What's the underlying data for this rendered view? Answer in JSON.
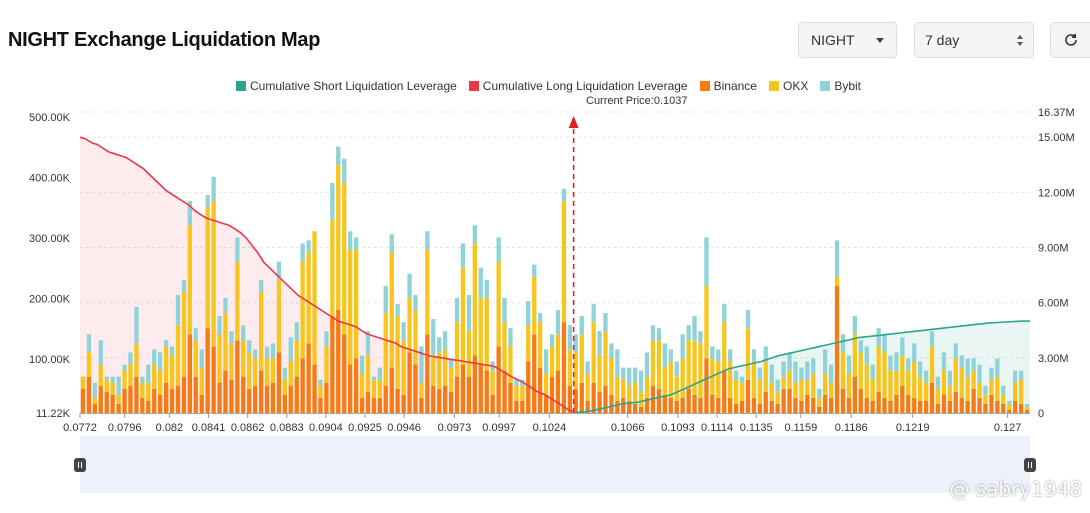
{
  "header": {
    "title": "NIGHT Exchange Liquidation Map"
  },
  "controls": {
    "coin_value": "NIGHT",
    "range_value": "7 day",
    "refresh_icon": "refresh-icon"
  },
  "watermark": "@ sabry1948",
  "colors": {
    "short": "#2aa58b",
    "long": "#e8394b",
    "binance": "#f47b16",
    "okx": "#f7c51e",
    "bybit": "#8fd3d9",
    "current_price_line": "#e02020"
  },
  "chart_data": {
    "type": "bar",
    "title": "",
    "current_price_label": "Current Price:0.1037",
    "current_price": 0.1037,
    "legend": [
      {
        "label": "Cumulative Short Liquidation Leverage",
        "color": "#2aa58b"
      },
      {
        "label": "Cumulative Long Liquidation Leverage",
        "color": "#e8394b"
      },
      {
        "label": "Binance",
        "color": "#f47b16"
      },
      {
        "label": "OKX",
        "color": "#f7c51e"
      },
      {
        "label": "Bybit",
        "color": "#8fd3d9"
      }
    ],
    "legend_position": "top-center",
    "y_left": {
      "ticks": [
        "500.00K",
        "400.00K",
        "300.00K",
        "200.00K",
        "100.00K",
        "11.22K"
      ],
      "values": [
        500000,
        400000,
        300000,
        200000,
        100000,
        11220
      ],
      "range": [
        11220,
        500000
      ]
    },
    "y_right": {
      "ticks": [
        "16.37M",
        "15.00M",
        "12.00M",
        "9.00M",
        "6.00M",
        "3.00M",
        "0"
      ],
      "values": [
        16370000,
        15000000,
        12000000,
        9000000,
        6000000,
        3000000,
        0
      ],
      "range": [
        0,
        16370000
      ]
    },
    "x_ticks": [
      "0.0772",
      "0.0796",
      "0.082",
      "0.0841",
      "0.0862",
      "0.0883",
      "0.0904",
      "0.0925",
      "0.0946",
      "0.0973",
      "0.0997",
      "0.1024",
      "0.1066",
      "0.1093",
      "0.1114",
      "0.1135",
      "0.1159",
      "0.1186",
      "0.1219",
      "0.127"
    ],
    "x_range": [
      0.0772,
      0.1282
    ],
    "bars_binance": [
      40,
      60,
      15,
      45,
      35,
      30,
      15,
      40,
      45,
      60,
      25,
      20,
      40,
      30,
      50,
      40,
      45,
      60,
      130,
      60,
      30,
      140,
      110,
      50,
      70,
      55,
      120,
      60,
      40,
      45,
      70,
      45,
      50,
      100,
      30,
      45,
      60,
      90,
      115,
      80,
      25,
      50,
      160,
      170,
      130,
      80,
      90,
      25,
      35,
      25,
      25,
      45,
      75,
      40,
      30,
      100,
      80,
      25,
      130,
      45,
      40,
      45,
      35,
      60,
      80,
      60,
      95,
      80,
      70,
      30,
      110,
      70,
      50,
      20,
      20,
      85,
      130,
      75,
      30,
      60,
      70,
      150,
      45,
      40,
      50,
      20,
      50,
      35,
      45,
      30,
      20,
      25,
      20,
      15,
      10,
      25,
      45,
      40,
      30,
      25,
      20,
      25,
      40,
      30,
      25,
      90,
      30,
      25,
      70,
      25,
      15,
      20,
      55,
      25,
      15,
      35,
      20,
      15,
      40,
      40,
      25,
      20,
      30,
      25,
      10,
      30,
      25,
      210,
      40,
      25,
      60,
      40,
      25,
      20,
      35,
      25,
      20,
      30,
      45,
      30,
      25,
      20,
      20,
      50,
      15,
      30,
      20,
      35,
      25,
      20,
      40,
      25,
      15,
      30,
      20,
      15,
      5,
      20,
      15,
      5
    ],
    "bars_okx": [
      20,
      40,
      10,
      35,
      20,
      20,
      15,
      30,
      35,
      55,
      25,
      30,
      40,
      40,
      60,
      55,
      100,
      140,
      180,
      60,
      45,
      200,
      240,
      80,
      95,
      60,
      130,
      60,
      60,
      45,
      130,
      45,
      40,
      120,
      25,
      40,
      60,
      160,
      150,
      220,
      20,
      60,
      160,
      240,
      250,
      190,
      180,
      40,
      60,
      30,
      30,
      120,
      190,
      120,
      90,
      90,
      90,
      25,
      140,
      50,
      60,
      60,
      40,
      90,
      160,
      75,
      185,
      110,
      120,
      40,
      140,
      80,
      60,
      25,
      25,
      60,
      95,
      75,
      35,
      50,
      60,
      200,
      60,
      60,
      80,
      45,
      100,
      60,
      90,
      60,
      40,
      30,
      25,
      35,
      25,
      35,
      75,
      80,
      45,
      60,
      40,
      65,
      80,
      90,
      90,
      120,
      60,
      60,
      80,
      60,
      40,
      30,
      85,
      60,
      40,
      50,
      30,
      20,
      20,
      30,
      25,
      35,
      25,
      40,
      15,
      35,
      25,
      15,
      60,
      40,
      70,
      60,
      55,
      35,
      75,
      75,
      50,
      40,
      50,
      40,
      60,
      40,
      30,
      60,
      25,
      40,
      25,
      55,
      50,
      40,
      30,
      25,
      15,
      25,
      40,
      15,
      10,
      30,
      40,
      5
    ],
    "bars_bybit": [
      0,
      30,
      25,
      40,
      5,
      10,
      30,
      10,
      20,
      60,
      10,
      30,
      25,
      30,
      10,
      15,
      50,
      20,
      40,
      20,
      30,
      20,
      40,
      30,
      25,
      20,
      40,
      25,
      20,
      15,
      20,
      20,
      25,
      30,
      20,
      40,
      30,
      30,
      20,
      0,
      10,
      25,
      60,
      30,
      40,
      30,
      20,
      30,
      40,
      5,
      20,
      45,
      30,
      20,
      30,
      40,
      25,
      60,
      30,
      60,
      25,
      30,
      15,
      40,
      40,
      60,
      30,
      50,
      30,
      15,
      40,
      40,
      30,
      10,
      10,
      40,
      20,
      15,
      40,
      20,
      40,
      20,
      40,
      30,
      30,
      20,
      30,
      40,
      30,
      25,
      45,
      20,
      30,
      25,
      35,
      40,
      25,
      20,
      40,
      20,
      25,
      40,
      25,
      40,
      20,
      80,
      20,
      20,
      30,
      20,
      15,
      10,
      30,
      20,
      20,
      25,
      30,
      20,
      25,
      30,
      35,
      20,
      30,
      25,
      15,
      40,
      30,
      60,
      30,
      30,
      30,
      20,
      30,
      25,
      30,
      30,
      25,
      30,
      30,
      20,
      30,
      25,
      20,
      25,
      20,
      30,
      25,
      25,
      20,
      30,
      20,
      30,
      15,
      20,
      30,
      15,
      5,
      20,
      15,
      5
    ],
    "long_cumulative": [
      15.0,
      14.9,
      14.7,
      14.6,
      14.4,
      14.2,
      14.1,
      14.0,
      13.9,
      13.7,
      13.5,
      13.3,
      13.0,
      12.7,
      12.4,
      12.1,
      11.9,
      11.7,
      11.5,
      11.3,
      11.0,
      10.8,
      10.6,
      10.5,
      10.4,
      10.3,
      10.2,
      10.0,
      9.8,
      9.5,
      9.1,
      8.7,
      8.2,
      7.9,
      7.6,
      7.3,
      7.0,
      6.7,
      6.4,
      6.2,
      6.0,
      5.8,
      5.6,
      5.4,
      5.2,
      5.0,
      4.9,
      4.8,
      4.7,
      4.5,
      4.3,
      4.2,
      4.1,
      4.0,
      3.9,
      3.8,
      3.6,
      3.5,
      3.4,
      3.3,
      3.2,
      3.1,
      3.05,
      3.0,
      2.95,
      2.9,
      2.85,
      2.8,
      2.75,
      2.7,
      2.65,
      2.6,
      2.55,
      2.4,
      2.2,
      2.0,
      1.85,
      1.7,
      1.5,
      1.3,
      1.1,
      1.0,
      0.8,
      0.6,
      0.4,
      0.2,
      0.05
    ],
    "short_cumulative": [
      0.0,
      0.05,
      0.1,
      0.2,
      0.3,
      0.4,
      0.5,
      0.55,
      0.6,
      0.7,
      0.8,
      0.9,
      1.0,
      1.2,
      1.4,
      1.6,
      1.8,
      2.0,
      2.2,
      2.4,
      2.5,
      2.6,
      2.7,
      2.8,
      2.95,
      3.1,
      3.2,
      3.3,
      3.4,
      3.5,
      3.6,
      3.7,
      3.8,
      3.9,
      4.0,
      4.1,
      4.15,
      4.2,
      4.25,
      4.3,
      4.35,
      4.4,
      4.45,
      4.5,
      4.55,
      4.6,
      4.65,
      4.7,
      4.75,
      4.8,
      4.85,
      4.9,
      4.92,
      4.95,
      4.97,
      5.0,
      5.0
    ]
  }
}
